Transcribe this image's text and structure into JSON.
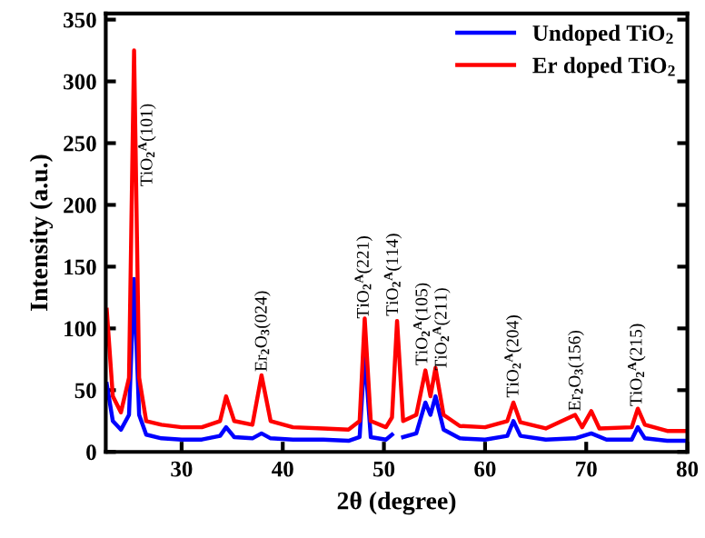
{
  "chart_data": {
    "type": "line",
    "xlabel": "2θ (degree)",
    "ylabel": "Intensity (a.u.)",
    "xlim": [
      22.5,
      80
    ],
    "xticks": [
      30,
      40,
      50,
      60,
      70,
      80
    ],
    "ylim": [
      0,
      355
    ],
    "yticks": [
      0,
      50,
      100,
      150,
      200,
      250,
      300,
      350
    ],
    "grid": false,
    "legend": "top right",
    "line_style": "solid",
    "marker": "none",
    "series": [
      {
        "name": "Undoped TiO$_{2}$",
        "color": "#0000ff",
        "x": [
          22.6,
          23.2,
          24.0,
          24.8,
          25.3,
          25.8,
          26.5,
          28,
          30,
          32,
          33.8,
          34.4,
          35.2,
          37,
          37.9,
          38.8,
          41,
          44,
          46.5,
          47.6,
          48.1,
          48.7,
          50.2,
          50.8,
          51.3,
          51.9,
          53.2,
          54.1,
          54.6,
          55.1,
          55.9,
          57.5,
          60,
          62.2,
          62.8,
          63.5,
          66,
          68.9,
          70.5,
          72,
          74.5,
          75.1,
          75.8,
          78,
          80
        ],
        "values": [
          55,
          25,
          18,
          30,
          140,
          30,
          14,
          11,
          10,
          10,
          13,
          20,
          12,
          11,
          15,
          11,
          10,
          10,
          9,
          12,
          80,
          12,
          10,
          14,
          null,
          12,
          15,
          40,
          30,
          45,
          18,
          11,
          10,
          13,
          25,
          13,
          10,
          11,
          15,
          10,
          10,
          20,
          11,
          9,
          9
        ]
      },
      {
        "name": "Er doped TiO$_{2}$",
        "color": "#ff0000",
        "x": [
          22.6,
          23.2,
          24.0,
          24.8,
          25.3,
          25.8,
          26.5,
          28,
          30,
          32,
          33.8,
          34.4,
          35.2,
          37,
          37.9,
          38.8,
          41,
          44,
          46.5,
          47.6,
          48.1,
          48.7,
          50.2,
          50.8,
          51.3,
          51.9,
          53.2,
          54.1,
          54.6,
          55.1,
          55.9,
          57.5,
          60,
          62.2,
          62.8,
          63.5,
          66,
          68.9,
          69.6,
          70.5,
          71.3,
          74.5,
          75.1,
          75.8,
          78,
          80
        ],
        "values": [
          115,
          45,
          32,
          60,
          325,
          60,
          25,
          22,
          20,
          20,
          25,
          45,
          25,
          22,
          62,
          25,
          20,
          19,
          18,
          25,
          108,
          25,
          20,
          28,
          106,
          25,
          30,
          66,
          45,
          68,
          30,
          21,
          20,
          25,
          40,
          24,
          19,
          30,
          20,
          33,
          19,
          20,
          35,
          22,
          17,
          17
        ]
      }
    ],
    "annotations": [
      {
        "text": "TiO$_{2}$$^{A}$(101)",
        "x": 26.6,
        "y": 215
      },
      {
        "text": "Er$_{2}$O$_{3}$(024)",
        "x": 38,
        "y": 65
      },
      {
        "text": "TiO$_{2}$$^{A}$(221)",
        "x": 48,
        "y": 108
      },
      {
        "text": "TiO$_{2}$$^{A}$(114)",
        "x": 50.9,
        "y": 110
      },
      {
        "text": "TiO$_{2}$$^{A}$(105)",
        "x": 53.8,
        "y": 70
      },
      {
        "text": "TiO$_{2}$$^{A}$(211)",
        "x": 55.7,
        "y": 66
      },
      {
        "text": "TiO$_{2}$$^{A}$(204)",
        "x": 62.8,
        "y": 44
      },
      {
        "text": "Er$_{2}$O$_{3}$(156)",
        "x": 69,
        "y": 33
      },
      {
        "text": "TiO$_{2}$$^{A}$(215)",
        "x": 75,
        "y": 37
      }
    ]
  }
}
